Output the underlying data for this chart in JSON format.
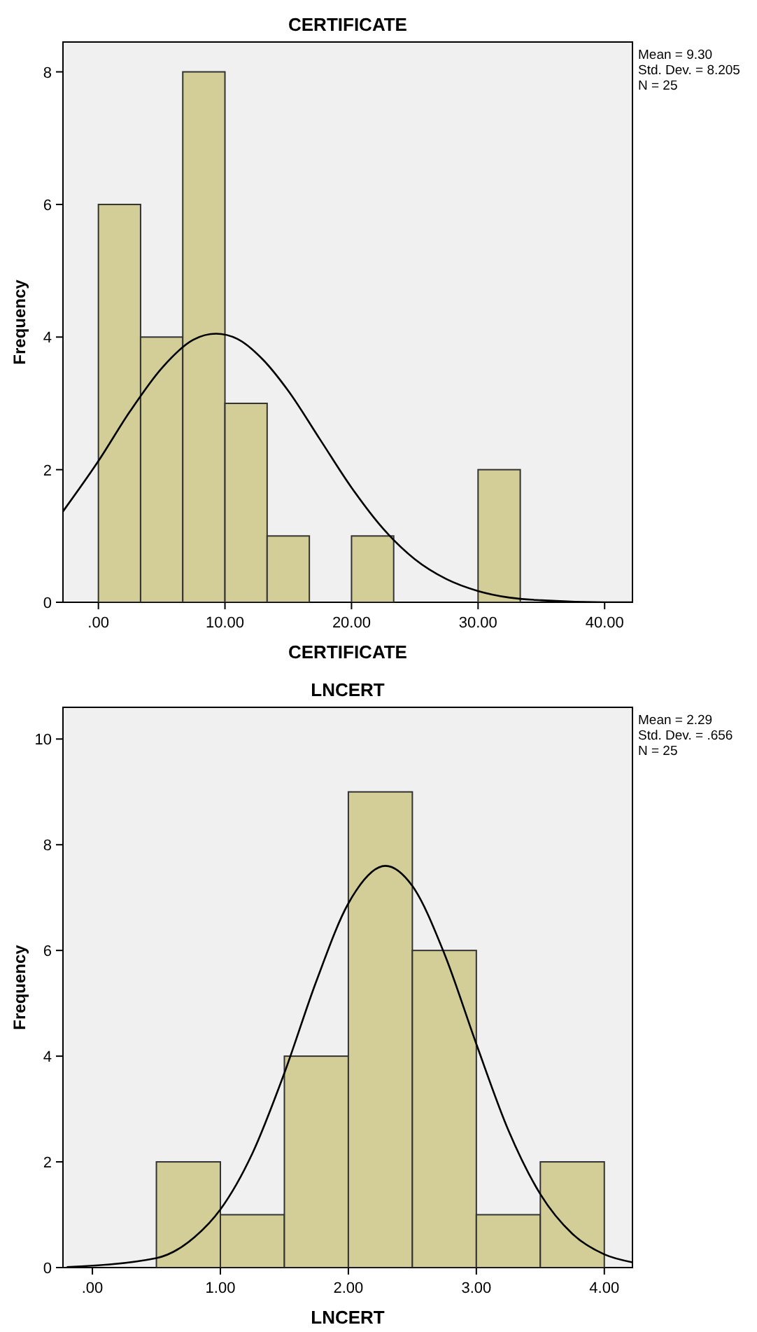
{
  "chart_data": [
    {
      "type": "histogram",
      "title": "CERTIFICATE",
      "xlabel": "CERTIFICATE",
      "ylabel": "Frequency",
      "bins": [
        0,
        3.333,
        6.667,
        10,
        13.333,
        16.667,
        20,
        23.333,
        26.667,
        30,
        33.333
      ],
      "values": [
        6,
        4,
        8,
        3,
        1,
        0,
        1,
        0,
        0,
        2
      ],
      "color": "#d3ce97",
      "xlim": [
        -2.8,
        42.2
      ],
      "xticks": [
        {
          "value": 0,
          "label": ".00"
        },
        {
          "value": 10,
          "label": "10.00"
        },
        {
          "value": 20,
          "label": "20.00"
        },
        {
          "value": 30,
          "label": "30.00"
        },
        {
          "value": 40,
          "label": "40.00"
        }
      ],
      "ylim": [
        0,
        8.45
      ],
      "yticks": [
        0,
        2,
        4,
        6,
        8
      ],
      "grid": false,
      "annotations": [
        "Mean = 9.30",
        "Std. Dev. = 8.205",
        "N = 25"
      ],
      "series": [
        {
          "type": "line",
          "color": "#000000",
          "x": [
            -2.8,
            0,
            2.5,
            5,
            7.5,
            9.3,
            11,
            13,
            15,
            17.5,
            20,
            22.5,
            25,
            27.5,
            30,
            32.5,
            35,
            40,
            42.2
          ],
          "values": [
            1.37,
            2.13,
            2.88,
            3.53,
            3.96,
            4.05,
            3.97,
            3.66,
            3.19,
            2.46,
            1.73,
            1.11,
            0.65,
            0.35,
            0.17,
            0.07,
            0.03,
            0,
            0
          ]
        }
      ]
    },
    {
      "type": "histogram",
      "title": "LNCERT",
      "xlabel": "LNCERT",
      "ylabel": "Frequency",
      "bins": [
        0.5,
        1,
        1.5,
        2,
        2.5,
        3,
        3.5,
        4
      ],
      "values": [
        2,
        1,
        4,
        9,
        6,
        1,
        2
      ],
      "color": "#d3ce97",
      "xlim": [
        -0.23,
        4.22
      ],
      "xticks": [
        {
          "value": 0,
          "label": ".00"
        },
        {
          "value": 1,
          "label": "1.00"
        },
        {
          "value": 2,
          "label": "2.00"
        },
        {
          "value": 3,
          "label": "3.00"
        },
        {
          "value": 4,
          "label": "4.00"
        }
      ],
      "ylim": [
        0,
        10.6
      ],
      "yticks": [
        0,
        2,
        4,
        6,
        8,
        10
      ],
      "grid": false,
      "annotations": [
        "Mean = 2.29",
        "Std. Dev. = .656",
        "N = 25"
      ],
      "series": [
        {
          "type": "line",
          "color": "#000000",
          "x": [
            -0.2,
            0.5,
            0.8,
            1,
            1.25,
            1.5,
            1.75,
            2,
            2.29,
            2.5,
            2.75,
            3,
            3.25,
            3.5,
            3.75,
            4,
            4.22
          ],
          "values": [
            0.01,
            0.18,
            0.58,
            1.1,
            2.16,
            3.68,
            5.42,
            6.89,
            7.6,
            7.22,
            5.94,
            4.23,
            2.6,
            1.39,
            0.64,
            0.25,
            0.1
          ]
        }
      ]
    }
  ]
}
